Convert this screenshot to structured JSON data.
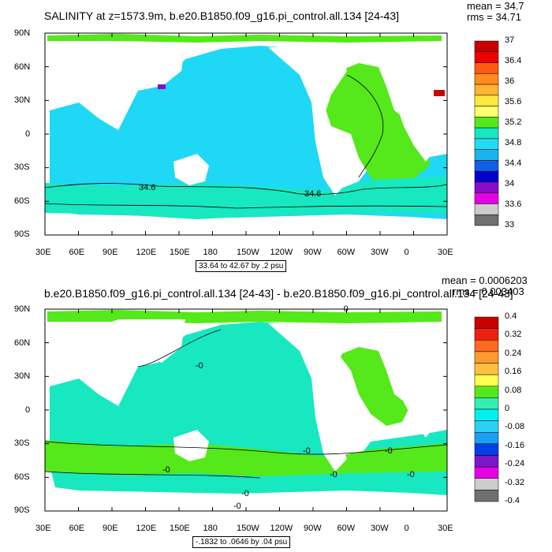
{
  "top": {
    "title": "SALINITY at z=1573.9m, b.e20.B1850.f09_g16.pi_control.all.134 [24-43]",
    "mean_label": "mean = 34.7",
    "rms_label": "rms = 34.71",
    "range_label": "33.64 to 42.67 by .2 psu",
    "contour_labels": [
      "34.6",
      "34.6"
    ],
    "legend_labels": [
      "37",
      "36.4",
      "36",
      "35.6",
      "35.2",
      "34.8",
      "34.4",
      "34",
      "33.6",
      "33"
    ],
    "legend_colors": [
      "#c80000",
      "#ee0000",
      "#ff5a10",
      "#ff8c20",
      "#ffb432",
      "#ffe840",
      "#ffff70",
      "#55e81a",
      "#17e8c0",
      "#22dcf5",
      "#1ab4ec",
      "#1060e6",
      "#0000cc",
      "#8a0aca",
      "#e600e6",
      "#cccccc",
      "#707070"
    ]
  },
  "bottom": {
    "title": "b.e20.B1850.f09_g16.pi_control.all.134 [24-43] - b.e20.B1850.f09_g16.pi_control.all.134 [24-43]",
    "mean_label": "mean = 0.0006203",
    "rms_label": "rms = 0.003403",
    "range_label": "-.1832 to .0646 by .04 psu",
    "contour_labels": [
      "-0",
      "-0",
      "-0",
      "-0",
      "-0",
      "-0",
      "-0",
      "-0",
      "-0"
    ],
    "legend_labels": [
      "0.4",
      "0.32",
      "0.24",
      "0.16",
      "0.08",
      "0",
      "-0.08",
      "-0.16",
      "-0.24",
      "-0.32",
      "-0.4"
    ],
    "legend_colors": [
      "#c80000",
      "#ee2010",
      "#ff6820",
      "#ff9a30",
      "#ffc040",
      "#ffff50",
      "#55e81a",
      "#33f0b0",
      "#00f0f0",
      "#2ad0f8",
      "#1aa0f0",
      "#0040e6",
      "#7a18c8",
      "#e600e6",
      "#cccccc",
      "#707070"
    ]
  },
  "axes": {
    "lat_ticks": [
      "90N",
      "60N",
      "30N",
      "0",
      "30S",
      "60S",
      "90S"
    ],
    "lon_ticks": [
      "30E",
      "60E",
      "90E",
      "120E",
      "150E",
      "180",
      "150W",
      "120W",
      "90W",
      "60W",
      "30W",
      "0",
      "30E"
    ]
  },
  "map_colors": {
    "ocean_top": "#1fd8f5",
    "ocean_top_atlantic": "#55e81a",
    "ocean_top_south": "#17e8c0",
    "ocean_bottom": "#17e8c0",
    "ocean_bottom_green": "#55e81a",
    "land": "#ffffff"
  }
}
